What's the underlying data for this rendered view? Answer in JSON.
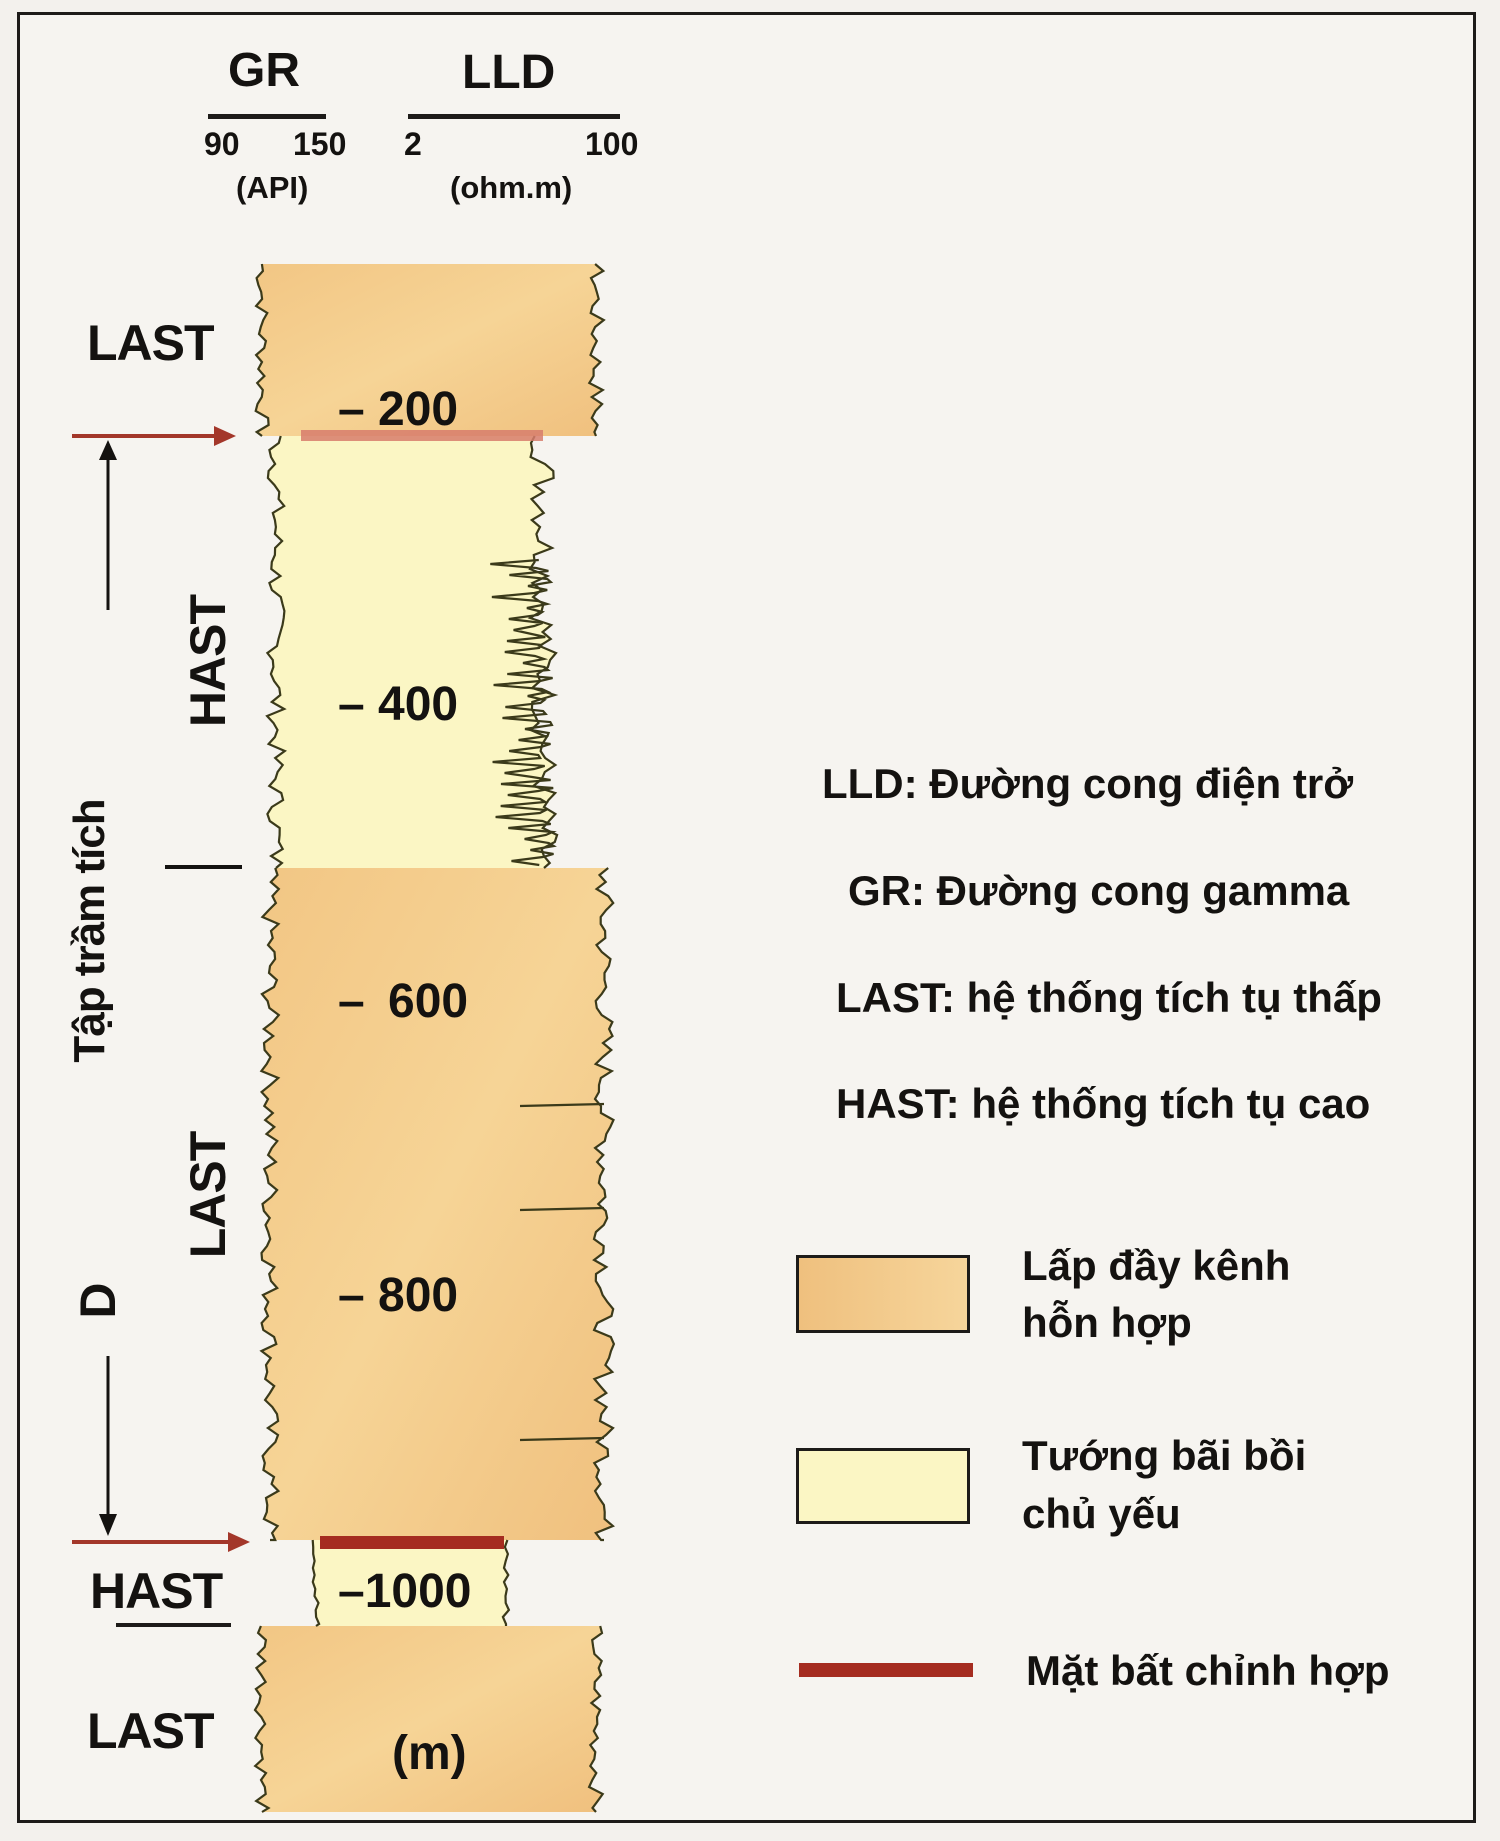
{
  "header": {
    "gr": {
      "name": "GR",
      "min": "90",
      "max": "150",
      "unit": "(API)"
    },
    "lld": {
      "name": "LLD",
      "min": "2",
      "max": "100",
      "unit": "(ohm.m)"
    }
  },
  "column": {
    "depth_unit": "(m)",
    "depth_ticks": [
      "200",
      "400",
      "600",
      "800",
      "1000"
    ],
    "zones": {
      "last_top": "LAST",
      "hast_upper": "HAST",
      "last_middle": "LAST",
      "hast_lower": "HAST",
      "last_bottom": "LAST"
    },
    "sequence_label": "Tập trầm tích",
    "sequence_name": "D"
  },
  "legend": {
    "abbreviations": [
      "LLD: Đường cong điện trở",
      "GR: Đường cong gamma",
      "LAST: hệ thống tích tụ thấp",
      "HAST: hệ thống tích tụ cao"
    ],
    "channel_fill": {
      "line1": "Lấp đầy kênh",
      "line2": "hỗn hợp"
    },
    "floodplain": {
      "line1": "Tướng bãi bồi",
      "line2": "chủ yếu"
    },
    "unconformity": "Mặt bất chỉnh hợp"
  },
  "colors": {
    "channel_fill": "#f5cf8f",
    "floodplain": "#fbf6c4",
    "unconformity": "#a52c20",
    "arrow": "#a3372a",
    "log_line": "#3b3a1a",
    "ink": "#141210"
  },
  "icons": [
    "arrow-right-icon",
    "arrow-up-icon",
    "arrow-down-icon"
  ]
}
